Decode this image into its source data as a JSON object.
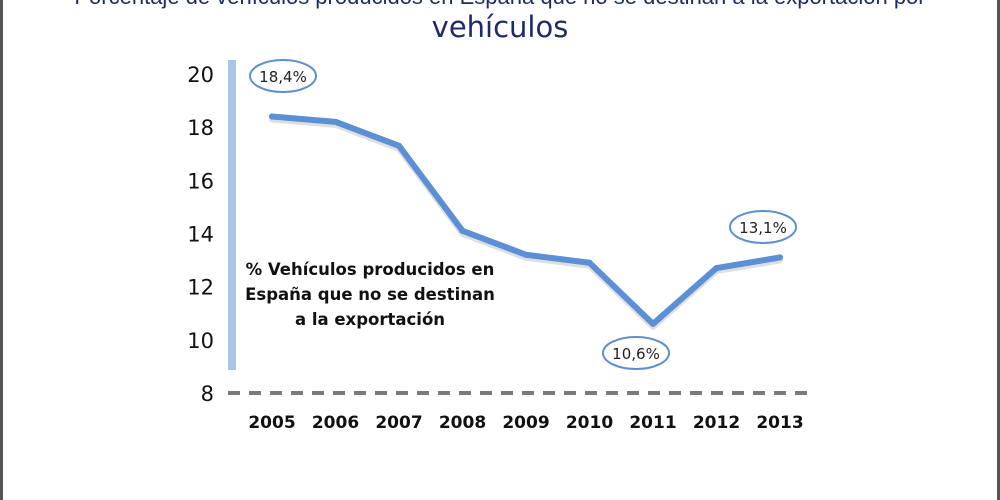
{
  "title": {
    "line1_partial": "Porcentaje de vehículos producidos en España que no se destinan a la exportación por",
    "line2": "vehículos"
  },
  "chart_data": {
    "type": "line",
    "title": "vehículos",
    "categories": [
      "2005",
      "2006",
      "2007",
      "2008",
      "2009",
      "2010",
      "2011",
      "2012",
      "2013"
    ],
    "series": [
      {
        "name": "% Vehículos producidos en España que no se destinan a la exportación",
        "values": [
          18.4,
          18.2,
          17.3,
          14.1,
          13.2,
          12.9,
          10.6,
          12.7,
          13.1
        ]
      }
    ],
    "yticks": [
      "8",
      "10",
      "12",
      "14",
      "16",
      "18",
      "20"
    ],
    "ylim": [
      8,
      20
    ],
    "annotations": [
      {
        "index": 0,
        "text": "18,4%"
      },
      {
        "index": 6,
        "text": "10,6%"
      },
      {
        "index": 8,
        "text": "13,1%"
      }
    ],
    "label_lines": [
      "% Vehículos producidos en",
      "España que no se destinan",
      "a la exportación"
    ],
    "colors": {
      "line": "#5b8fd6",
      "axis_bar": "#a9c4e4",
      "baseline": "#7a7a7a",
      "title": "#1f2a6b",
      "annotation": "#5b8fd6"
    }
  }
}
